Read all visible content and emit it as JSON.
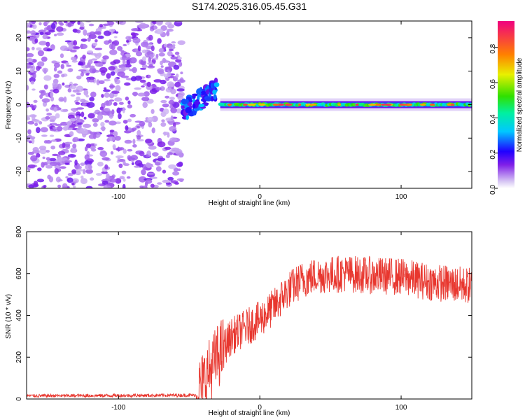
{
  "figure_title": "S174.2025.316.05.45.G31",
  "chart_data": [
    {
      "type": "heatmap",
      "panel": "spectrogram",
      "xlabel": "Height of straight line (km)",
      "ylabel": "Frequency (Hz)",
      "xlim": [
        -165,
        150
      ],
      "ylim": [
        -25,
        25
      ],
      "xticks": [
        -100,
        0,
        100
      ],
      "yticks": [
        -20,
        -10,
        0,
        10,
        20
      ],
      "colorbar": {
        "label": "Normalized spectral amplitude",
        "range": [
          0.0,
          0.95
        ],
        "ticks": [
          0.0,
          0.2,
          0.4,
          0.6,
          0.8
        ],
        "colormap": "rainbow"
      },
      "regions": [
        {
          "name": "noise",
          "x": [
            -165,
            -55
          ],
          "y": [
            -25,
            25
          ],
          "typical_amplitude": 0.05
        },
        {
          "name": "onset",
          "x": [
            -55,
            -30
          ],
          "center_hz": [
            -2,
            5
          ],
          "peak_amplitude": 0.35
        },
        {
          "name": "carrier",
          "x": [
            -28,
            150
          ],
          "center_hz": 0,
          "peak_amplitude": 0.95
        }
      ]
    },
    {
      "type": "line",
      "panel": "snr",
      "xlabel": "Height of straight line (km)",
      "ylabel": "SNR (10 * v/v)",
      "xlim": [
        -165,
        150
      ],
      "ylim": [
        0,
        800
      ],
      "xticks": [
        -100,
        0,
        100
      ],
      "yticks": [
        0,
        200,
        400,
        600,
        800
      ],
      "color": "#e8372f",
      "series": [
        {
          "name": "SNR",
          "x": [
            -165,
            -45,
            -40,
            -30,
            -20,
            -10,
            0,
            10,
            20,
            30,
            40,
            60,
            80,
            100,
            120,
            150
          ],
          "values": [
            15,
            18,
            80,
            200,
            300,
            340,
            380,
            440,
            520,
            570,
            590,
            600,
            590,
            585,
            560,
            540
          ]
        }
      ]
    }
  ]
}
